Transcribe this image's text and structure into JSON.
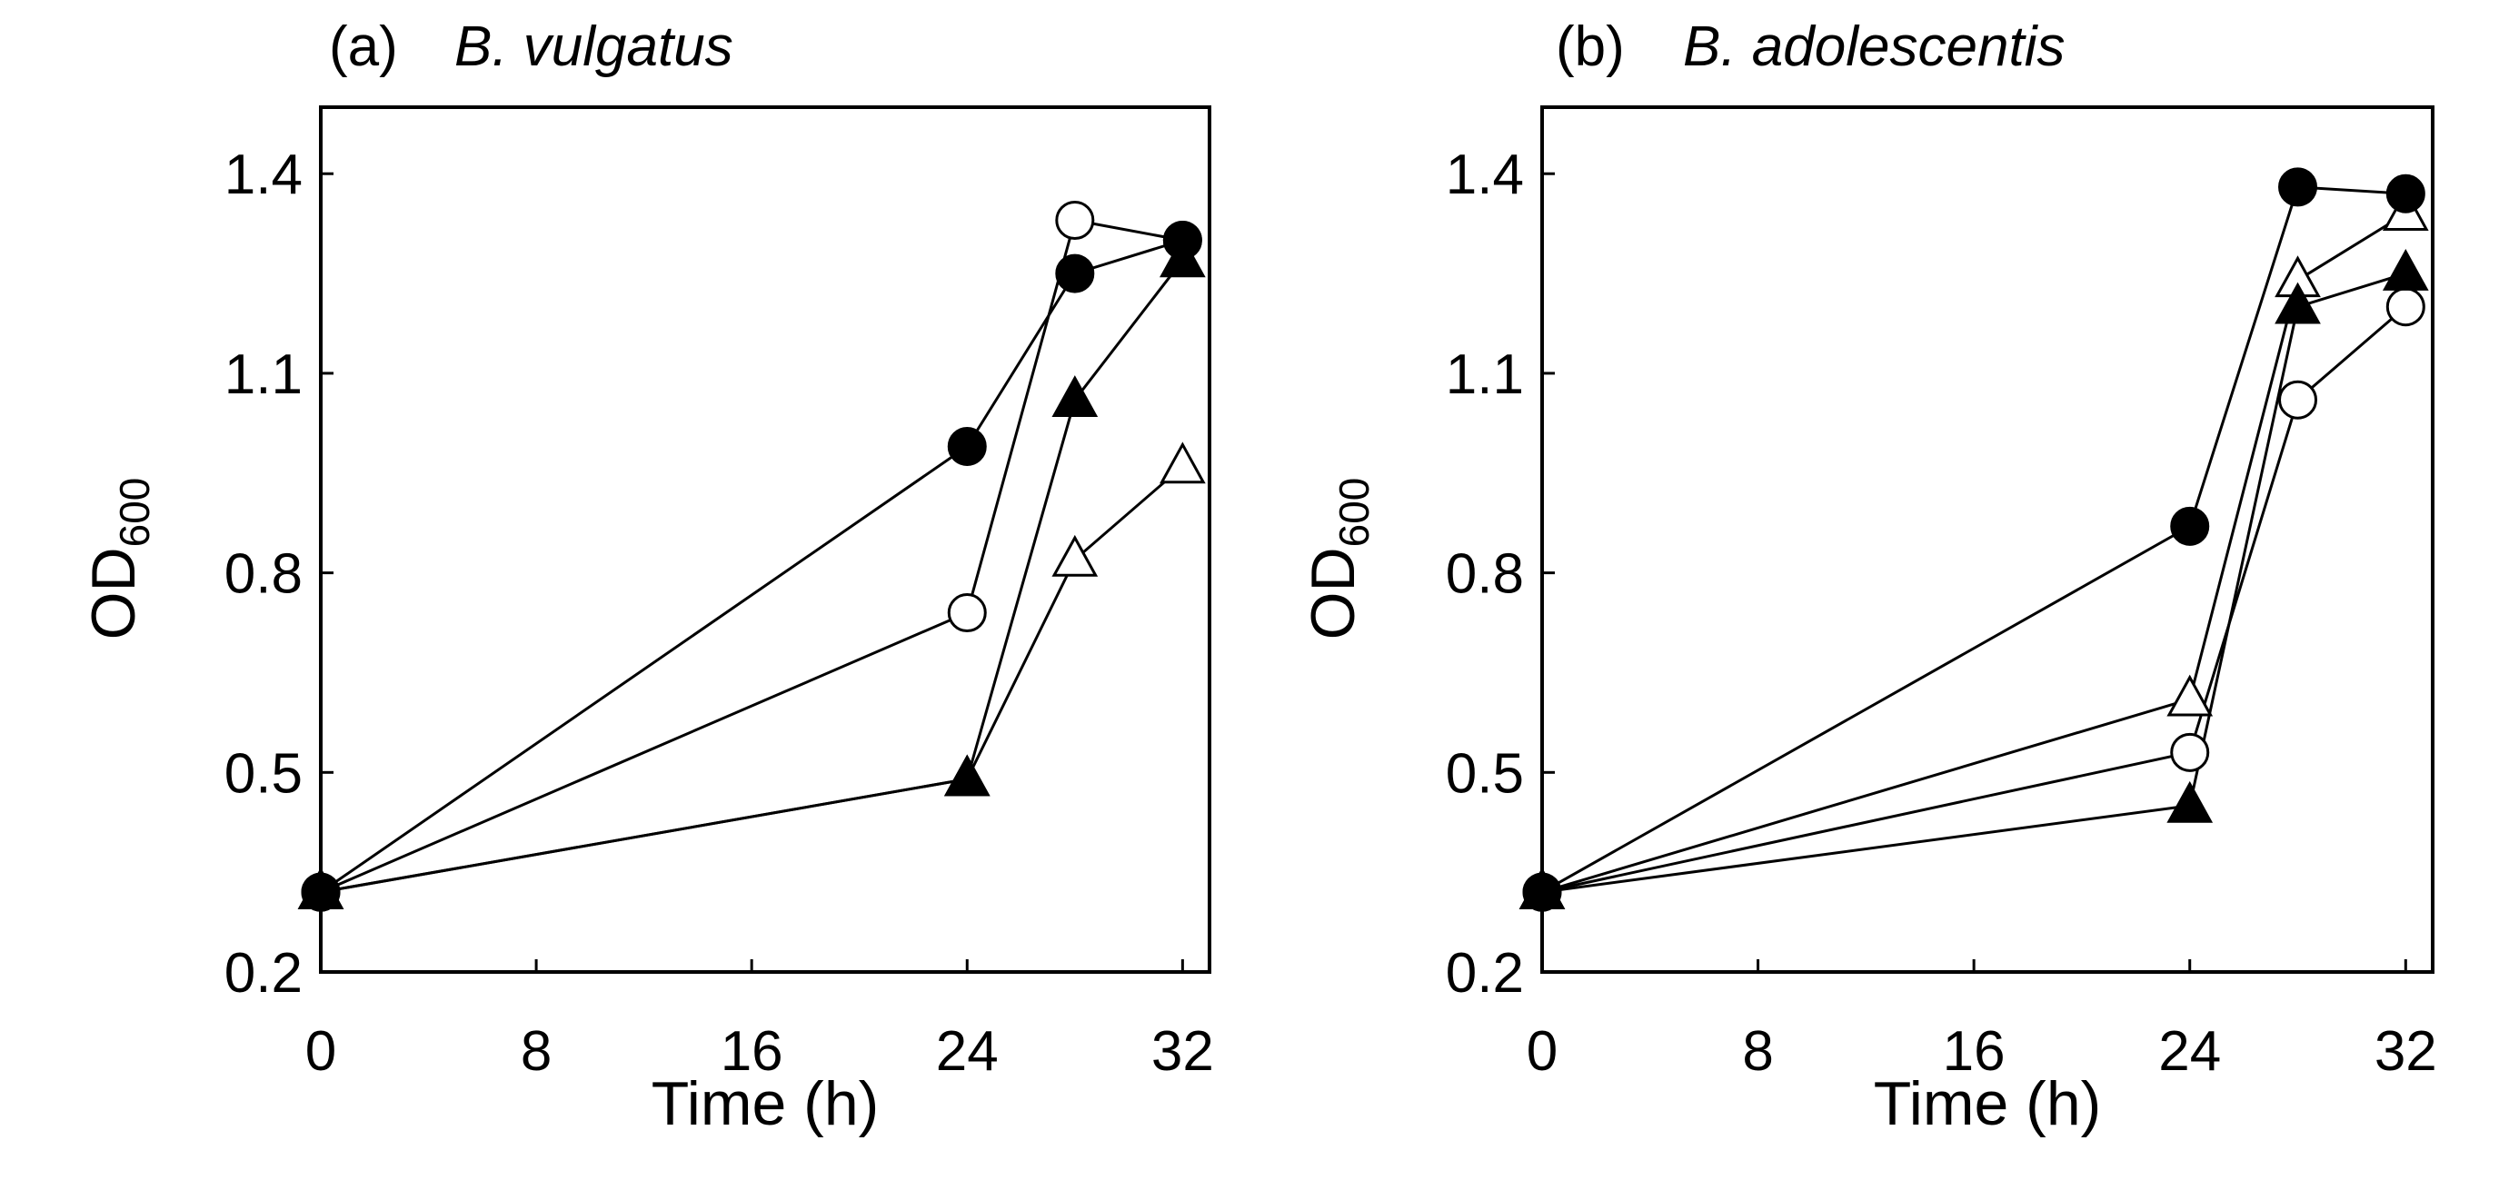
{
  "chart_data": [
    {
      "type": "line",
      "panel_label": "(a)",
      "title": "B. vulgatus",
      "xlabel": "Time (h)",
      "ylabel_main": "OD",
      "ylabel_sub": "600",
      "xlim": [
        0,
        33
      ],
      "ylim": [
        0.2,
        1.5
      ],
      "xticks": [
        0,
        8,
        16,
        24,
        32
      ],
      "xtick_labels": [
        "0",
        "8",
        "16",
        "24",
        "32"
      ],
      "yticks": [
        0.2,
        0.5,
        0.8,
        1.1,
        1.4
      ],
      "ytick_labels": [
        "0.2",
        "0.5",
        "0.8",
        "1.1",
        "1.4"
      ],
      "grid": false,
      "series": [
        {
          "name": "filled-circle",
          "marker": "circle",
          "fill": "#000000",
          "x": [
            0,
            24,
            28,
            32
          ],
          "y": [
            0.32,
            0.99,
            1.25,
            1.3
          ]
        },
        {
          "name": "open-circle",
          "marker": "circle",
          "fill": "#ffffff",
          "x": [
            0,
            24,
            28,
            32
          ],
          "y": [
            0.32,
            0.74,
            1.33,
            1.3
          ]
        },
        {
          "name": "filled-triangle",
          "marker": "triangle",
          "fill": "#000000",
          "x": [
            0,
            24,
            28,
            32
          ],
          "y": [
            0.32,
            0.49,
            1.06,
            1.27
          ]
        },
        {
          "name": "open-triangle",
          "marker": "triangle",
          "fill": "#ffffff",
          "x": [
            0,
            24,
            28,
            32
          ],
          "y": [
            0.32,
            0.49,
            0.82,
            0.96
          ]
        }
      ]
    },
    {
      "type": "line",
      "panel_label": "(b)",
      "title": "B. adolescentis",
      "xlabel": "Time (h)",
      "ylabel_main": "OD",
      "ylabel_sub": "600",
      "xlim": [
        0,
        33
      ],
      "ylim": [
        0.2,
        1.5
      ],
      "xticks": [
        0,
        8,
        16,
        24,
        32
      ],
      "xtick_labels": [
        "0",
        "8",
        "16",
        "24",
        "32"
      ],
      "yticks": [
        0.2,
        0.5,
        0.8,
        1.1,
        1.4
      ],
      "ytick_labels": [
        "0.2",
        "0.5",
        "0.8",
        "1.1",
        "1.4"
      ],
      "grid": false,
      "series": [
        {
          "name": "filled-circle",
          "marker": "circle",
          "fill": "#000000",
          "x": [
            0,
            24,
            28,
            32
          ],
          "y": [
            0.32,
            0.87,
            1.38,
            1.37
          ]
        },
        {
          "name": "open-circle",
          "marker": "circle",
          "fill": "#ffffff",
          "x": [
            0,
            24,
            28,
            32
          ],
          "y": [
            0.32,
            0.53,
            1.06,
            1.2
          ]
        },
        {
          "name": "filled-triangle",
          "marker": "triangle",
          "fill": "#000000",
          "x": [
            0,
            24,
            28,
            32
          ],
          "y": [
            0.32,
            0.45,
            1.2,
            1.25
          ]
        },
        {
          "name": "open-triangle",
          "marker": "triangle",
          "fill": "#ffffff",
          "x": [
            0,
            24,
            28,
            32
          ],
          "y": [
            0.32,
            0.61,
            1.24,
            1.34
          ]
        }
      ]
    }
  ]
}
